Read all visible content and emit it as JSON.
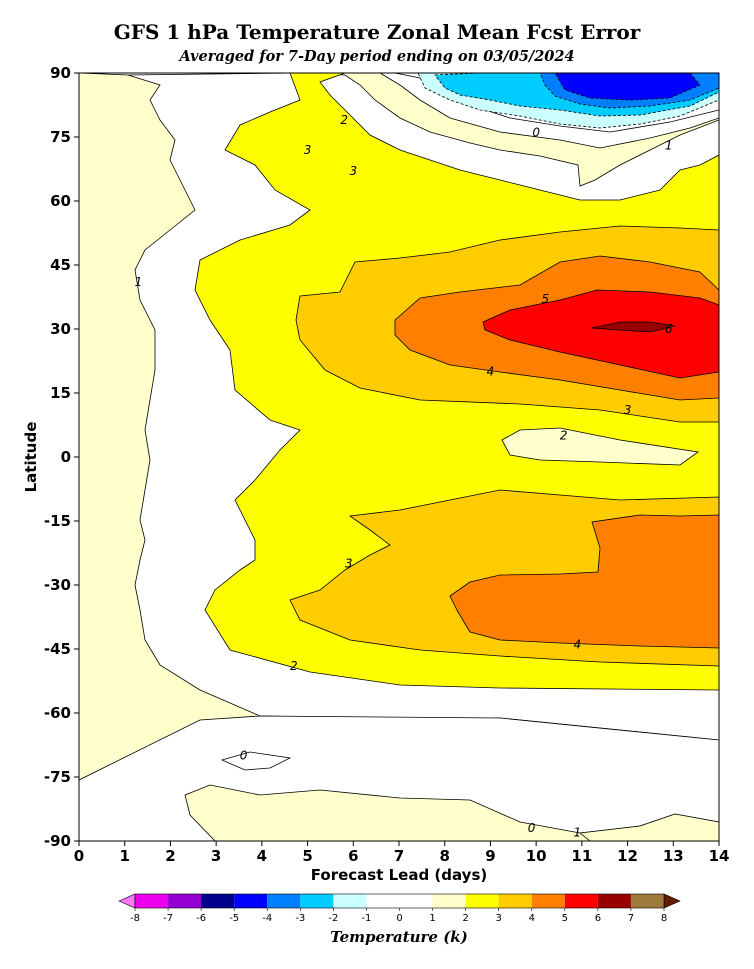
{
  "chart_data": {
    "type": "contour",
    "title": "GFS 1 hPa Temperature Zonal Mean Fcst Error",
    "subtitle": "Averaged for 7-Day period ending on 03/05/2024",
    "xlabel": "Forecast Lead (days)",
    "ylabel": "Latitude",
    "colorbar_label": "Temperature (k)",
    "xlim": [
      0,
      14
    ],
    "ylim": [
      -90,
      90
    ],
    "xticks": [
      "0",
      "1",
      "2",
      "3",
      "4",
      "5",
      "6",
      "7",
      "8",
      "9",
      "10",
      "11",
      "12",
      "13",
      "14"
    ],
    "yticks": [
      "90",
      "75",
      "60",
      "45",
      "30",
      "15",
      "0",
      "-15",
      "-30",
      "-45",
      "-60",
      "-75",
      "-90"
    ],
    "colorbar_ticks": [
      "-8",
      "-7",
      "-6",
      "-5",
      "-4",
      "-3",
      "-2",
      "-1",
      "0",
      "1",
      "2",
      "3",
      "4",
      "5",
      "6",
      "7",
      "8"
    ],
    "levels": [
      -8,
      -7,
      -6,
      -5,
      -4,
      -3,
      -2,
      -1,
      0,
      1,
      2,
      3,
      4,
      5,
      6,
      7,
      8
    ],
    "level_colors": [
      "#ee00ee",
      "#9400d3",
      "#00008b",
      "#0000ff",
      "#0080ff",
      "#00ccff",
      "#ccffff",
      "#ffffff",
      "#ffffff",
      "#ffffcc",
      "#ffff00",
      "#ffcc00",
      "#ff8000",
      "#ff0000",
      "#990000",
      "#9e7a3a"
    ],
    "contour_labels": [
      {
        "text": "0",
        "x": 10.0,
        "y": 76
      },
      {
        "text": "1",
        "x": 12.9,
        "y": 73
      },
      {
        "text": "2",
        "x": 5.8,
        "y": 79
      },
      {
        "text": "3",
        "x": 5.0,
        "y": 72
      },
      {
        "text": "3",
        "x": 6.0,
        "y": 67
      },
      {
        "text": "1",
        "x": 1.3,
        "y": 41
      },
      {
        "text": "5",
        "x": 10.2,
        "y": 37
      },
      {
        "text": "6",
        "x": 12.9,
        "y": 30
      },
      {
        "text": "4",
        "x": 9.0,
        "y": 20
      },
      {
        "text": "3",
        "x": 12.0,
        "y": 11
      },
      {
        "text": "2",
        "x": 10.6,
        "y": 5
      },
      {
        "text": "3",
        "x": 5.9,
        "y": -25
      },
      {
        "text": "4",
        "x": 10.9,
        "y": -44
      },
      {
        "text": "2",
        "x": 4.7,
        "y": -49
      },
      {
        "text": "0",
        "x": 3.6,
        "y": -70
      },
      {
        "text": "0",
        "x": 9.9,
        "y": -87
      },
      {
        "text": "1",
        "x": 10.9,
        "y": -88
      }
    ]
  }
}
